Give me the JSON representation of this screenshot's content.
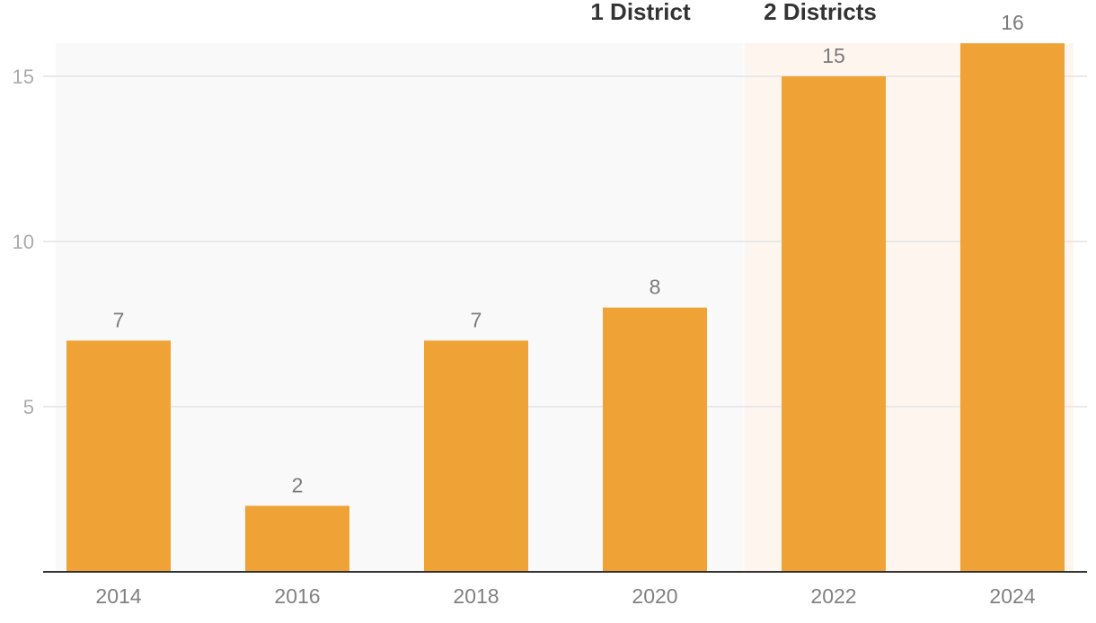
{
  "chart_data": {
    "type": "bar",
    "title": "",
    "xlabel": "",
    "ylabel": "",
    "categories": [
      "2014",
      "2016",
      "2018",
      "2020",
      "2022",
      "2024"
    ],
    "values": [
      7,
      2,
      7,
      8,
      15,
      16
    ],
    "data_labels": [
      "7",
      "2",
      "7",
      "8",
      "15",
      "16"
    ],
    "ylim": [
      0,
      16
    ],
    "y_ticks": [
      5,
      10,
      15
    ],
    "y_tick_labels": [
      "5",
      "10",
      "15"
    ],
    "grid": true,
    "legend": "none",
    "regions": [
      {
        "label": "1 District",
        "from": "2014",
        "to": "2020",
        "color": "#f9f9f9"
      },
      {
        "label": "2 Districts",
        "from": "2022",
        "to": "2024",
        "color": "#fff5ef"
      }
    ],
    "colors": {
      "bar": "#efa336",
      "grid": "#e4e4e4",
      "axis": "#333333"
    }
  }
}
